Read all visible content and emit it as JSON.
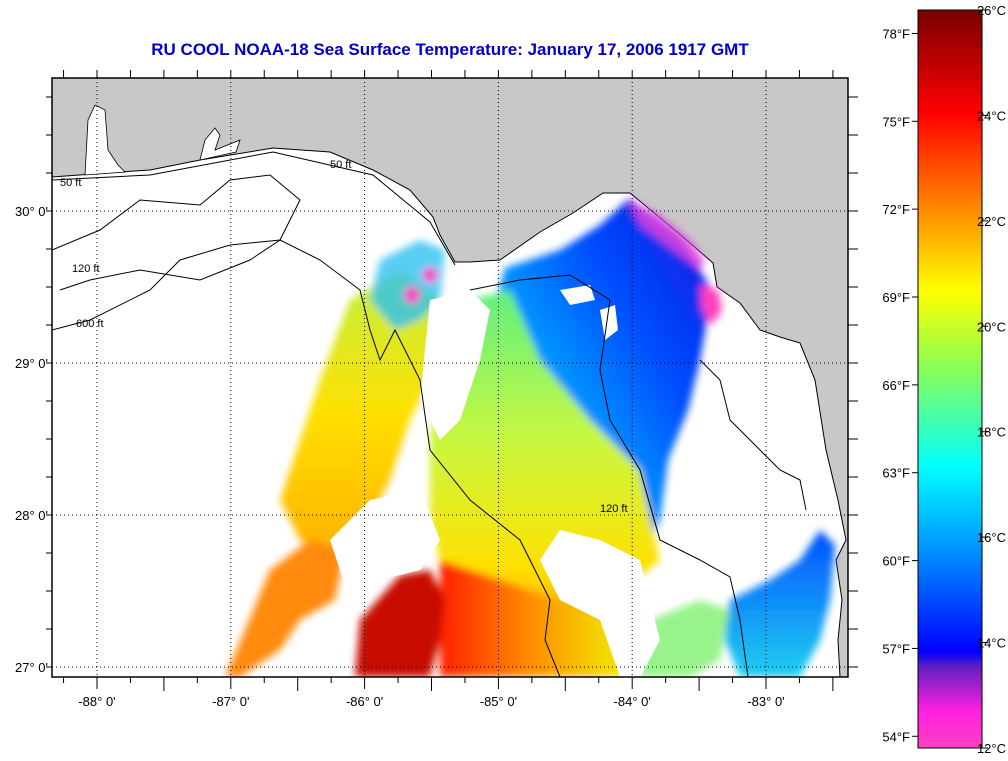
{
  "title": "RU COOL  NOAA-18  Sea Surface Temperature:  January 17, 2006 1917 GMT",
  "map": {
    "lon_labels": [
      {
        "value": -88,
        "text": "-88° 0'"
      },
      {
        "value": -87,
        "text": "-87° 0'"
      },
      {
        "value": -86,
        "text": "-86° 0'"
      },
      {
        "value": -85,
        "text": "-85° 0'"
      },
      {
        "value": -84,
        "text": "-84° 0'"
      },
      {
        "value": -83,
        "text": "-83° 0'"
      }
    ],
    "lat_labels": [
      {
        "value": 30,
        "text": "30° 0'"
      },
      {
        "value": 29,
        "text": "29° 0'"
      },
      {
        "value": 28,
        "text": "28° 0'"
      },
      {
        "value": 27,
        "text": "27° 0'"
      }
    ],
    "contour_labels": [
      "50 ft",
      "120 ft",
      "600 ft"
    ],
    "colors": {
      "land": "#c8c8c8",
      "ocean_nodata": "#ffffff",
      "grid": "#000000"
    }
  },
  "colorbar": {
    "min_c": 12,
    "max_c": 26,
    "celsius_ticks": [
      {
        "value": 26,
        "text": "26°C"
      },
      {
        "value": 24,
        "text": "24°C"
      },
      {
        "value": 22,
        "text": "22°C"
      },
      {
        "value": 20,
        "text": "20°C"
      },
      {
        "value": 18,
        "text": "18°C"
      },
      {
        "value": 16,
        "text": "16°C"
      },
      {
        "value": 14,
        "text": "14°C"
      },
      {
        "value": 12,
        "text": "12°C"
      }
    ],
    "fahrenheit_ticks": [
      {
        "value": 78,
        "text": "78°F"
      },
      {
        "value": 75,
        "text": "75°F"
      },
      {
        "value": 72,
        "text": "72°F"
      },
      {
        "value": 69,
        "text": "69°F"
      },
      {
        "value": 66,
        "text": "66°F"
      },
      {
        "value": 63,
        "text": "63°F"
      },
      {
        "value": 60,
        "text": "60°F"
      },
      {
        "value": 57,
        "text": "57°F"
      },
      {
        "value": 54,
        "text": "54°F"
      }
    ]
  }
}
